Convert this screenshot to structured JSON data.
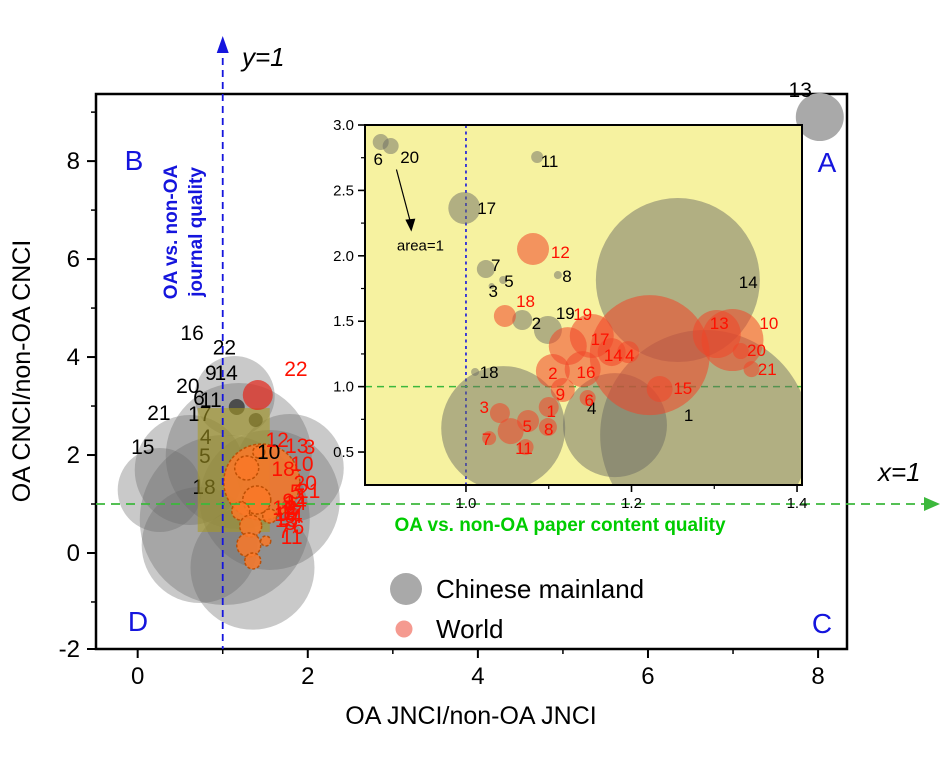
{
  "figure": {
    "corner_labels": {
      "a": "A",
      "b": "B",
      "c": "C",
      "d": "D"
    },
    "reference_lines": {
      "vertical_label": "y=1",
      "horizontal_label": "x=1"
    },
    "annotations": {
      "journal_quality_line1": "OA vs. non-OA",
      "journal_quality_line2": "journal quality",
      "content_quality": "OA vs. non-OA paper content quality",
      "area_note": "area=1"
    },
    "legend": {
      "items": [
        {
          "label": "Chinese mainland",
          "color": "#a9a9a9"
        },
        {
          "label": "World",
          "color": "#f59a90"
        }
      ]
    },
    "colors": {
      "inset_bg": "#f6f2a0",
      "zoom_rect": "#a89b22",
      "gray_bubble": "rgba(105,105,105,0.36)",
      "gray_bubble_inset": "rgba(108,108,100,0.5)",
      "red_bubble": "rgba(240,70,40,0.6)",
      "red_bubble_inset": "rgba(240,70,40,0.55)",
      "orange_bubble": "rgba(250,120,40,0.85)",
      "blue_line": "#1515dd",
      "green_line": "#3cb83c"
    }
  },
  "chart_data": [
    {
      "id": "main",
      "type": "bubble-scatter",
      "xlabel": "OA JNCI/non-OA JNCI",
      "ylabel": "OA CNCI/non-OA CNCI",
      "xlim": [
        -0.49,
        8.34
      ],
      "ylim": [
        -1.96,
        9.37
      ],
      "xticks": {
        "major": [
          0,
          2,
          4,
          6,
          8
        ],
        "minor": [
          1,
          3,
          5,
          7
        ]
      },
      "yticks": {
        "major": [
          -2,
          0,
          2,
          4,
          6,
          8
        ],
        "minor": [
          -1,
          1,
          3,
          5,
          7,
          9
        ]
      },
      "reference_lines": {
        "vertical_x": 1,
        "horizontal_y": 1
      },
      "zoom_region_rect": {
        "x0": 0.706,
        "x1": 1.553,
        "y0": 0.429,
        "y1": 2.959
      },
      "series": {
        "chinese_mainland": {
          "legend": "Chinese mainland",
          "bubbles": [
            [
              1.141,
              3.204,
              40
            ],
            [
              1.188,
              1.98,
              73
            ],
            [
              0.612,
              1.694,
              55
            ],
            [
              0.259,
              1.286,
              42
            ],
            [
              1.024,
              0.673,
              85
            ],
            [
              1.553,
              1.082,
              70
            ],
            [
              0.729,
              0.163,
              58
            ],
            [
              1.788,
              1.735,
              54
            ],
            [
              1.35,
              -0.3,
              62
            ]
          ],
          "solid_bubbles": [
            [
              8.02,
              8.9,
              24
            ]
          ],
          "dark_dots": [
            [
              1.165,
              2.98,
              8
            ],
            [
              1.388,
              2.714,
              7
            ]
          ]
        },
        "world": {
          "legend": "World",
          "orange_bubbles": [
            [
              1.459,
              1.449,
              38
            ],
            [
              1.282,
              1.735,
              12
            ],
            [
              1.4,
              1.082,
              14
            ],
            [
              1.212,
              0.857,
              9
            ],
            [
              1.329,
              0.551,
              11
            ],
            [
              1.306,
              0.163,
              12
            ],
            [
              1.353,
              -0.163,
              8
            ],
            [
              1.424,
              2.061,
              6
            ],
            [
              1.553,
              0.755,
              7
            ],
            [
              1.506,
              0.245,
              5
            ]
          ],
          "red_bubbles": [
            [
              1.412,
              3.224,
              15
            ],
            [
              1.753,
              0.98,
              5
            ],
            [
              1.847,
              0.837,
              4
            ]
          ]
        }
      },
      "labels": {
        "black": [
          [
            "13",
            7.79,
            9.45
          ],
          [
            "16",
            0.64,
            4.49
          ],
          [
            "22",
            1.02,
            4.2
          ],
          [
            "9",
            0.86,
            3.67
          ],
          [
            "14",
            1.04,
            3.67
          ],
          [
            "20",
            0.59,
            3.41
          ],
          [
            "6",
            0.72,
            3.16
          ],
          [
            "11",
            0.86,
            3.12
          ],
          [
            "21",
            0.25,
            2.86
          ],
          [
            "15",
            0.06,
            2.16
          ],
          [
            "10",
            1.54,
            2.06
          ]
        ],
        "dim": [
          [
            "17",
            0.73,
            2.84
          ],
          [
            "4",
            0.8,
            2.37
          ],
          [
            "5",
            0.79,
            1.98
          ],
          [
            "18",
            0.78,
            1.35
          ]
        ],
        "red": [
          [
            "22",
            1.86,
            3.76
          ],
          [
            "12",
            1.64,
            2.31
          ],
          [
            "3",
            2.02,
            2.16
          ],
          [
            "13",
            1.87,
            2.18
          ],
          [
            "10",
            1.93,
            1.82
          ],
          [
            "18",
            1.71,
            1.71
          ],
          [
            "20",
            1.97,
            1.43
          ],
          [
            "21",
            2.01,
            1.27
          ],
          [
            "5",
            1.86,
            1.25
          ],
          [
            "1",
            1.93,
            1.14
          ],
          [
            "9",
            1.77,
            1.06
          ],
          [
            "14",
            1.85,
            1.02
          ],
          [
            "2",
            1.81,
            0.92
          ],
          [
            "19",
            1.72,
            0.92
          ],
          [
            "16",
            1.74,
            0.8
          ],
          [
            "17",
            1.8,
            0.82
          ],
          [
            "4",
            1.87,
            0.76
          ],
          [
            "15",
            1.75,
            0.67
          ],
          [
            "8",
            1.79,
            0.61
          ],
          [
            "6",
            1.89,
            0.53
          ],
          [
            "7",
            1.72,
            0.45
          ],
          [
            "11",
            1.81,
            0.33
          ]
        ]
      }
    },
    {
      "id": "inset",
      "type": "bubble-scatter",
      "xlim": [
        0.878,
        1.406
      ],
      "ylim": [
        0.248,
        3.0
      ],
      "xticks": {
        "major": [
          1.0,
          1.2,
          1.4
        ],
        "minor": [
          1.1,
          1.3
        ]
      },
      "yticks": {
        "major": [
          0.5,
          1.0,
          1.5,
          2.0,
          2.5,
          3.0
        ],
        "minor": [
          0.75,
          1.25,
          1.75,
          2.25,
          2.75
        ]
      },
      "reference_lines": {
        "vertical_x": 1,
        "horizontal_y": 1
      },
      "annotation_area1": {
        "text": "area=1",
        "text_at": [
          0.945,
          2.04
        ],
        "arrow_from": [
          0.916,
          2.66
        ],
        "arrow_to": [
          0.934,
          2.2
        ]
      },
      "series": {
        "chinese_mainland": {
          "bubbles": [
            [
              0.897,
              2.87,
              8
            ],
            [
              0.909,
              2.839,
              8
            ],
            [
              1.086,
              2.755,
              6
            ],
            [
              0.998,
              2.365,
              16
            ],
            [
              1.024,
              1.899,
              9
            ],
            [
              1.045,
              1.815,
              4
            ],
            [
              1.031,
              1.769,
              3
            ],
            [
              1.111,
              1.853,
              4
            ],
            [
              1.068,
              1.509,
              10
            ],
            [
              1.099,
              1.433,
              14
            ],
            [
              1.011,
              1.112,
              4
            ],
            [
              1.045,
              0.683,
              62
            ],
            [
              1.18,
              0.706,
              52
            ],
            [
              1.289,
              0.63,
              105
            ],
            [
              1.256,
              1.815,
              82
            ]
          ]
        },
        "world": {
          "bubbles": [
            [
              1.081,
              2.052,
              16
            ],
            [
              1.047,
              1.54,
              11
            ],
            [
              1.123,
              1.31,
              19
            ],
            [
              1.152,
              1.387,
              22
            ],
            [
              1.176,
              1.264,
              14
            ],
            [
              1.196,
              1.264,
              11
            ],
            [
              1.141,
              1.134,
              18
            ],
            [
              1.105,
              1.119,
              17
            ],
            [
              1.117,
              0.974,
              12
            ],
            [
              1.147,
              0.913,
              8
            ],
            [
              1.1,
              0.844,
              10
            ],
            [
              1.075,
              0.737,
              11
            ],
            [
              1.099,
              0.691,
              9
            ],
            [
              1.041,
              0.798,
              10
            ],
            [
              1.054,
              0.66,
              13
            ],
            [
              1.028,
              0.606,
              7
            ],
            [
              1.072,
              0.538,
              8
            ],
            [
              1.234,
              0.982,
              13
            ],
            [
              1.303,
              1.402,
              24
            ],
            [
              1.322,
              1.356,
              31
            ],
            [
              1.222,
              1.241,
              60
            ],
            [
              1.332,
              1.272,
              8
            ],
            [
              1.345,
              1.134,
              8
            ]
          ]
        }
      },
      "labels": {
        "black": [
          [
            "6",
            0.894,
            2.748
          ],
          [
            "20",
            0.932,
            2.763
          ],
          [
            "11",
            1.101,
            2.732
          ],
          [
            "17",
            1.025,
            2.373
          ],
          [
            "7",
            1.036,
            1.937
          ],
          [
            "5",
            1.052,
            1.815
          ],
          [
            "3",
            1.033,
            1.738
          ],
          [
            "8",
            1.122,
            1.853
          ],
          [
            "2",
            1.085,
            1.494
          ],
          [
            "19",
            1.12,
            1.57
          ],
          [
            "18",
            1.028,
            1.119
          ],
          [
            "4",
            1.152,
            0.844
          ],
          [
            "1",
            1.269,
            0.79
          ],
          [
            "14",
            1.341,
            1.807
          ]
        ],
        "red": [
          [
            "12",
            1.114,
            2.037
          ],
          [
            "18",
            1.072,
            1.662
          ],
          [
            "19",
            1.141,
            1.562
          ],
          [
            "17",
            1.162,
            1.371
          ],
          [
            "14",
            1.178,
            1.249
          ],
          [
            "4",
            1.198,
            1.249
          ],
          [
            "16",
            1.145,
            1.119
          ],
          [
            "2",
            1.105,
            1.111
          ],
          [
            "13",
            1.306,
            1.494
          ],
          [
            "10",
            1.366,
            1.494
          ],
          [
            "20",
            1.351,
            1.287
          ],
          [
            "21",
            1.364,
            1.142
          ],
          [
            "15",
            1.262,
            0.997
          ],
          [
            "9",
            1.114,
            0.951
          ],
          [
            "6",
            1.149,
            0.905
          ],
          [
            "1",
            1.103,
            0.821
          ],
          [
            "3",
            1.022,
            0.851
          ],
          [
            "5",
            1.074,
            0.706
          ],
          [
            "8",
            1.1,
            0.683
          ],
          [
            "7",
            1.025,
            0.606
          ],
          [
            "11",
            1.07,
            0.538
          ]
        ]
      }
    }
  ]
}
